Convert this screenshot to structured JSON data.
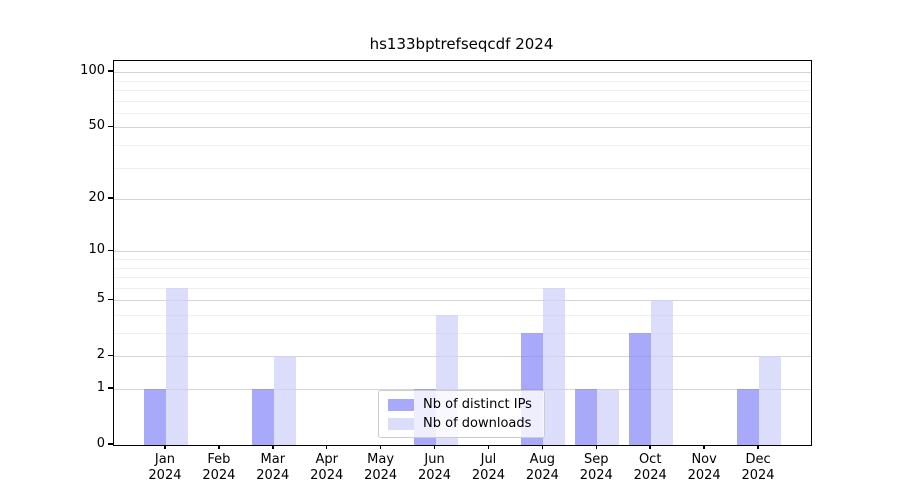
{
  "chart_data": {
    "type": "bar",
    "title": "hs133bptrefseqcdf 2024",
    "categories": [
      "Jan",
      "Feb",
      "Mar",
      "Apr",
      "May",
      "Jun",
      "Jul",
      "Aug",
      "Sep",
      "Oct",
      "Nov",
      "Dec"
    ],
    "x_tick_line2": "2024",
    "series": [
      {
        "name": "Nb of distinct IPs",
        "color": "#8484f8",
        "opacity": 0.7,
        "values": [
          1,
          0,
          1,
          0,
          0,
          1,
          0,
          3,
          1,
          3,
          0,
          1
        ]
      },
      {
        "name": "Nb of downloads",
        "color": "#cdcdfa",
        "opacity": 0.7,
        "values": [
          6,
          0,
          2,
          0,
          0,
          4,
          0,
          6,
          1,
          5,
          0,
          2
        ]
      }
    ],
    "xlabel": "",
    "ylabel": "",
    "yscale": "log1p",
    "ylim": [
      0,
      115
    ],
    "y_major_ticks": [
      0,
      1,
      2,
      5,
      10,
      20,
      50,
      100
    ],
    "y_minor_ticks": [
      3,
      4,
      6,
      7,
      8,
      9,
      30,
      40,
      60,
      70,
      80,
      90
    ],
    "grid": true,
    "legend_position": "bottom-center",
    "colors": {
      "axis": "#000000",
      "major_grid": "#d5d5d5",
      "minor_grid": "#efefef",
      "background": "#ffffff"
    }
  }
}
